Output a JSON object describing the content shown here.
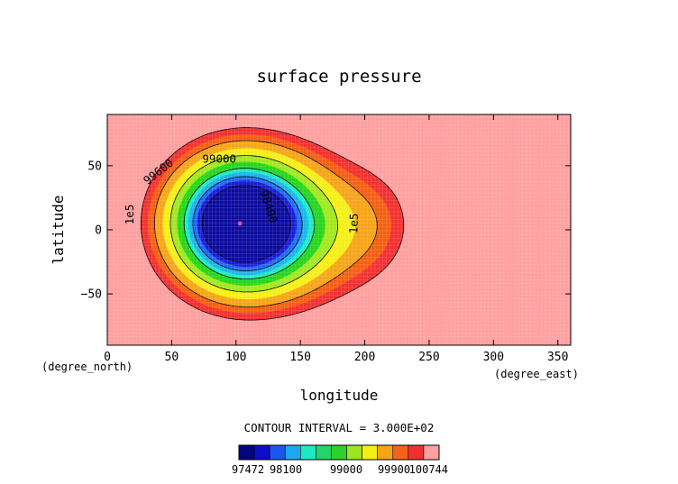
{
  "chart_data": {
    "type": "contour",
    "title": "surface pressure",
    "xlabel": "longitude",
    "ylabel": "latitude",
    "x_unit": "(degree_east)",
    "y_unit": "(degree_north)",
    "xlim": [
      0,
      360
    ],
    "ylim": [
      -90,
      90
    ],
    "x_ticks": [
      0,
      50,
      100,
      150,
      200,
      250,
      300,
      350
    ],
    "y_ticks": [
      -50,
      0,
      50
    ],
    "contour_interval_text": "CONTOUR INTERVAL = 3.000E+02",
    "contour_labels": [
      "1e5",
      "99600",
      "99000",
      "98400",
      "1e5"
    ],
    "minimum_marker": {
      "lon": 103,
      "lat": 5
    },
    "levels": [
      {
        "threshold": 100500,
        "color": "#ff9f9f"
      },
      {
        "threshold": 100000,
        "color": "#f33030"
      },
      {
        "threshold": 99800,
        "color": "#f55f12"
      },
      {
        "threshold": 99600,
        "color": "#f7a418"
      },
      {
        "threshold": 99300,
        "color": "#f5ef17"
      },
      {
        "threshold": 99000,
        "color": "#a2e81f"
      },
      {
        "threshold": 98700,
        "color": "#24d61c"
      },
      {
        "threshold": 98400,
        "color": "#19edbf"
      },
      {
        "threshold": 98200,
        "color": "#1cb2ef"
      },
      {
        "threshold": 98000,
        "color": "#1d6cf4"
      },
      {
        "threshold": 97800,
        "color": "#1a1ad8"
      },
      {
        "threshold": 97600,
        "color": "#0b0b9e"
      }
    ],
    "colorbar": {
      "colors": [
        "#05057e",
        "#0d0dca",
        "#1b56ef",
        "#1ca8ef",
        "#1de8c4",
        "#22d46a",
        "#2ed128",
        "#9be61e",
        "#f3ee17",
        "#f7a318",
        "#f5621a",
        "#f03030",
        "#ff9f9f"
      ],
      "tick_labels": [
        "97472",
        "98100",
        "99000",
        "99900",
        "100744"
      ]
    }
  }
}
